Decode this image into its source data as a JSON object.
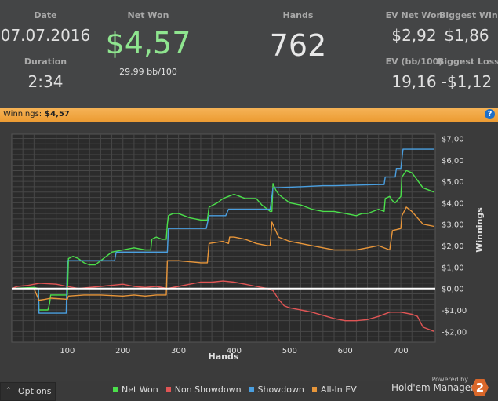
{
  "stats": {
    "date_label": "Date",
    "date_value": "07.07.2016",
    "duration_label": "Duration",
    "duration_value": "2:34",
    "net_won_label": "Net Won",
    "net_won_value": "$4,57",
    "net_won_bb": "29,99 bb/100",
    "hands_label": "Hands",
    "hands_value": "762",
    "ev_net_won_label": "EV Net Won",
    "ev_net_won_value": "$2,92",
    "ev_bb_label": "EV (bb/100)",
    "ev_bb_value": "19,16",
    "biggest_win_label": "Biggest Win",
    "biggest_win_value": "$1,86",
    "biggest_loss_label": "Biggest Loss",
    "biggest_loss_value": "-$1,12"
  },
  "bar": {
    "label": "Winnings:",
    "value": "$4,57",
    "help": "?"
  },
  "chart_data": {
    "type": "line",
    "xlabel": "Hands",
    "ylabel": "Winnings",
    "xlim": [
      0,
      762
    ],
    "ylim": [
      -2.5,
      7.2
    ],
    "xticks": [
      100,
      200,
      300,
      400,
      500,
      600,
      700
    ],
    "yticks": [
      7,
      6,
      5,
      4,
      3,
      2,
      1,
      0,
      -1,
      -2
    ],
    "ytick_labels": [
      "$7,00",
      "$6,00",
      "$5,00",
      "$4,00",
      "$3,00",
      "$2,00",
      "$1,00",
      "$0,00",
      "-$1,00",
      "-$2,00"
    ],
    "grid": true,
    "legend_position": "bottom",
    "series": [
      {
        "name": "Net Won",
        "color": "#4be04b",
        "x": [
          0,
          40,
          48,
          49,
          58,
          60,
          65,
          68,
          70,
          90,
          100,
          102,
          110,
          120,
          130,
          140,
          150,
          160,
          170,
          180,
          200,
          210,
          220,
          240,
          250,
          252,
          260,
          270,
          278,
          280,
          282,
          290,
          300,
          310,
          320,
          340,
          352,
          355,
          370,
          380,
          390,
          400,
          410,
          420,
          440,
          450,
          460,
          465,
          468,
          470,
          475,
          480,
          490,
          500,
          520,
          530,
          540,
          560,
          580,
          600,
          620,
          630,
          640,
          660,
          670,
          672,
          680,
          685,
          690,
          700,
          702,
          710,
          720,
          740,
          760
        ],
        "y": [
          0.0,
          0.05,
          0.0,
          -1.0,
          -1.0,
          -1.0,
          -1.0,
          -0.7,
          -0.3,
          -0.3,
          -0.3,
          1.4,
          1.5,
          1.4,
          1.2,
          1.1,
          1.1,
          1.3,
          1.5,
          1.7,
          1.8,
          1.85,
          1.9,
          1.8,
          1.8,
          2.3,
          2.4,
          2.3,
          2.3,
          3.0,
          3.4,
          3.5,
          3.5,
          3.4,
          3.3,
          3.2,
          3.2,
          3.8,
          4.0,
          4.2,
          4.3,
          4.4,
          4.3,
          4.2,
          4.2,
          3.9,
          3.7,
          3.6,
          3.6,
          4.9,
          4.6,
          4.4,
          4.2,
          4.0,
          3.9,
          3.8,
          3.7,
          3.6,
          3.6,
          3.5,
          3.4,
          3.5,
          3.5,
          3.7,
          3.6,
          4.2,
          4.3,
          4.1,
          4.0,
          4.3,
          5.2,
          5.5,
          5.4,
          4.7,
          4.5
        ]
      },
      {
        "name": "Non Showdown",
        "color": "#e05555",
        "x": [
          0,
          10,
          30,
          50,
          80,
          100,
          120,
          140,
          160,
          180,
          200,
          220,
          240,
          260,
          280,
          300,
          320,
          340,
          360,
          380,
          400,
          420,
          440,
          460,
          470,
          480,
          490,
          500,
          520,
          540,
          560,
          580,
          600,
          620,
          640,
          660,
          680,
          700,
          720,
          730,
          740,
          760
        ],
        "y": [
          0.0,
          0.1,
          0.15,
          0.25,
          0.2,
          0.1,
          0.0,
          0.05,
          0.1,
          0.15,
          0.2,
          0.1,
          0.05,
          0.1,
          0.0,
          0.1,
          0.2,
          0.3,
          0.3,
          0.35,
          0.3,
          0.2,
          0.1,
          0.0,
          -0.1,
          -0.5,
          -0.8,
          -0.9,
          -1.0,
          -1.1,
          -1.25,
          -1.4,
          -1.5,
          -1.5,
          -1.45,
          -1.3,
          -1.1,
          -1.1,
          -1.2,
          -1.3,
          -1.8,
          -2.0
        ]
      },
      {
        "name": "Showdown",
        "color": "#4a9fe0",
        "x": [
          0,
          40,
          48,
          49,
          70,
          85,
          98,
          100,
          140,
          185,
          188,
          210,
          250,
          280,
          282,
          330,
          350,
          355,
          385,
          390,
          420,
          430,
          465,
          470,
          520,
          560,
          580,
          660,
          670,
          672,
          690,
          692,
          700,
          704,
          760
        ],
        "y": [
          0.0,
          0.0,
          0.0,
          -1.15,
          -1.15,
          -1.15,
          -1.15,
          1.3,
          1.3,
          1.3,
          1.7,
          1.7,
          1.7,
          1.7,
          2.8,
          2.8,
          2.8,
          3.4,
          3.4,
          3.7,
          3.7,
          3.7,
          3.7,
          4.7,
          4.75,
          4.8,
          4.8,
          4.85,
          4.85,
          5.2,
          5.2,
          5.6,
          5.6,
          6.5,
          6.5
        ]
      },
      {
        "name": "All-In EV",
        "color": "#e8963a",
        "x": [
          0,
          40,
          49,
          60,
          70,
          100,
          102,
          130,
          160,
          200,
          220,
          240,
          260,
          278,
          280,
          300,
          340,
          352,
          355,
          380,
          390,
          392,
          400,
          420,
          440,
          460,
          465,
          468,
          480,
          500,
          520,
          540,
          560,
          580,
          600,
          620,
          640,
          660,
          680,
          685,
          700,
          702,
          710,
          720,
          740,
          760
        ],
        "y": [
          0.0,
          0.0,
          -0.55,
          -0.5,
          -0.45,
          -0.5,
          -0.35,
          -0.3,
          -0.3,
          -0.35,
          -0.3,
          -0.35,
          -0.3,
          -0.3,
          1.3,
          1.3,
          1.2,
          1.2,
          2.1,
          2.2,
          2.1,
          2.4,
          2.4,
          2.3,
          2.1,
          2.0,
          2.0,
          3.1,
          2.4,
          2.2,
          2.1,
          2.0,
          1.9,
          1.8,
          1.8,
          1.8,
          1.9,
          2.0,
          1.8,
          2.7,
          2.8,
          3.4,
          3.8,
          3.6,
          3.0,
          2.9
        ]
      }
    ]
  },
  "footer": {
    "options_label": "Options",
    "powered_by": "Powered by",
    "brand": "Hold'em Manager",
    "brand_logo": "2"
  }
}
